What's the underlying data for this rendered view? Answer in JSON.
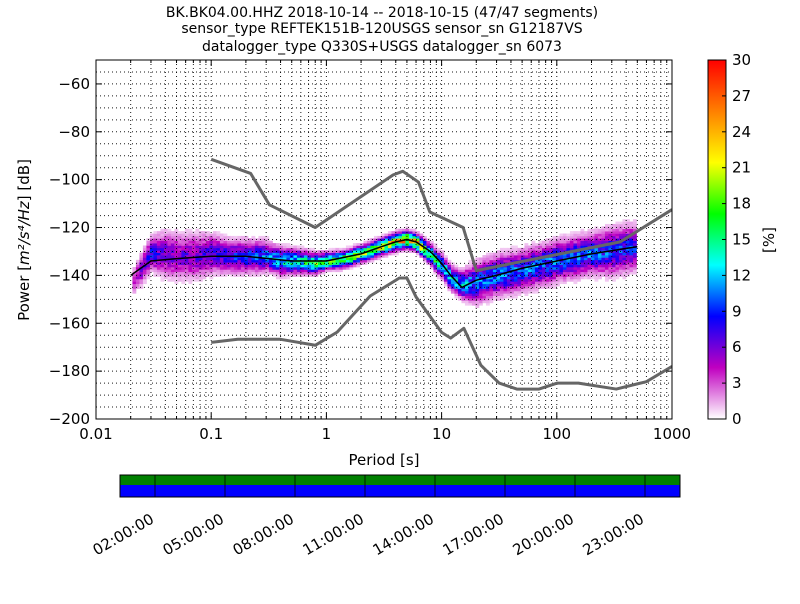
{
  "title_lines": [
    "BK.BK04.00.HHZ   2018-10-14 -- 2018-10-15  (47/47 segments)",
    "sensor_type REFTEK151B-120USGS sensor_sn G12187VS",
    "datalogger_type Q330S+USGS datalogger_sn 6073"
  ],
  "chart_data": {
    "type": "heatmap",
    "title": "BK.BK04.00.HHZ   2018-10-14 -- 2018-10-15  (47/47 segments)",
    "xlabel": "Period [s]",
    "ylabel_prefix": "Power [",
    "ylabel_unit": "m²/s⁴/Hz",
    "ylabel_suffix": "] [dB]",
    "xscale": "log",
    "xlim": [
      0.01,
      1000
    ],
    "ylim": [
      -200,
      -50
    ],
    "x_ticks": [
      {
        "value": 0.01,
        "label": "0.01"
      },
      {
        "value": 0.1,
        "label": "0.1"
      },
      {
        "value": 1,
        "label": "1"
      },
      {
        "value": 10,
        "label": "10"
      },
      {
        "value": 100,
        "label": "100"
      },
      {
        "value": 1000,
        "label": "1000"
      }
    ],
    "y_ticks": [
      {
        "value": -200,
        "label": "−200"
      },
      {
        "value": -180,
        "label": "−180"
      },
      {
        "value": -160,
        "label": "−160"
      },
      {
        "value": -140,
        "label": "−140"
      },
      {
        "value": -120,
        "label": "−120"
      },
      {
        "value": -100,
        "label": "−100"
      },
      {
        "value": -80,
        "label": "−80"
      },
      {
        "value": -60,
        "label": "−60"
      }
    ],
    "grid": true,
    "colorbar": {
      "label": "[%]",
      "min": 0,
      "max": 30,
      "ticks": [
        {
          "value": 0,
          "label": "0"
        },
        {
          "value": 3,
          "label": "3"
        },
        {
          "value": 6,
          "label": "6"
        },
        {
          "value": 9,
          "label": "9"
        },
        {
          "value": 12,
          "label": "12"
        },
        {
          "value": 15,
          "label": "15"
        },
        {
          "value": 18,
          "label": "18"
        },
        {
          "value": 21,
          "label": "21"
        },
        {
          "value": 24,
          "label": "24"
        },
        {
          "value": 27,
          "label": "27"
        },
        {
          "value": 30,
          "label": "30"
        }
      ],
      "colors": [
        "#ffffff",
        "#c000c0",
        "#0000ff",
        "#00ffff",
        "#00ff00",
        "#ffff00",
        "#ff8000",
        "#ff0000"
      ]
    },
    "psd_distribution": [
      [
        0.02,
        -144,
        8,
        3
      ],
      [
        0.025,
        -137,
        10,
        6
      ],
      [
        0.03,
        -131,
        10,
        8
      ],
      [
        0.04,
        -131,
        14,
        6
      ],
      [
        0.05,
        -132,
        14,
        6
      ],
      [
        0.07,
        -132,
        14,
        6
      ],
      [
        0.1,
        -131,
        12,
        7
      ],
      [
        0.15,
        -132,
        10,
        8
      ],
      [
        0.2,
        -132,
        10,
        9
      ],
      [
        0.3,
        -132,
        9,
        10
      ],
      [
        0.4,
        -134,
        8,
        12
      ],
      [
        0.6,
        -134,
        7,
        14
      ],
      [
        0.8,
        -135,
        6,
        16
      ],
      [
        1.0,
        -134,
        5,
        18
      ],
      [
        1.5,
        -133,
        5,
        18
      ],
      [
        2.0,
        -131,
        5,
        18
      ],
      [
        3.0,
        -128,
        5,
        20
      ],
      [
        4.0,
        -126,
        5,
        22
      ],
      [
        5.0,
        -125,
        5,
        24
      ],
      [
        6.0,
        -126,
        5,
        22
      ],
      [
        8.0,
        -131,
        6,
        16
      ],
      [
        10.0,
        -136,
        7,
        14
      ],
      [
        12.0,
        -141,
        7,
        13
      ],
      [
        15.0,
        -144,
        8,
        12
      ],
      [
        20.0,
        -143,
        12,
        10
      ],
      [
        30.0,
        -140,
        12,
        10
      ],
      [
        50.0,
        -138,
        12,
        10
      ],
      [
        70.0,
        -136,
        12,
        10
      ],
      [
        100.0,
        -134,
        12,
        10
      ],
      [
        150.0,
        -132,
        12,
        10
      ],
      [
        200.0,
        -131,
        12,
        10
      ],
      [
        300.0,
        -130,
        14,
        9
      ],
      [
        500.0,
        -128,
        14,
        8
      ]
    ],
    "mean_curve": {
      "x": [
        0.02,
        0.03,
        0.05,
        0.1,
        0.2,
        0.5,
        1,
        2,
        3,
        4,
        5,
        6,
        8,
        10,
        12,
        15,
        20,
        30,
        50,
        100,
        200,
        500
      ],
      "y": [
        -140,
        -134,
        -133,
        -132,
        -132,
        -134,
        -134,
        -131,
        -128,
        -126,
        -125,
        -126,
        -130,
        -135,
        -140,
        -145,
        -142,
        -140,
        -137,
        -134,
        -131,
        -128
      ]
    },
    "nhnm": {
      "x": [
        0.1,
        0.22,
        0.32,
        0.8,
        3.8,
        4.6,
        6.3,
        7.9,
        15.4,
        20,
        354.8,
        1000
      ],
      "y": [
        -91.5,
        -97.4,
        -110.5,
        -120,
        -98,
        -96.5,
        -101,
        -113.5,
        -120,
        -138,
        -126,
        -112.5
      ]
    },
    "nlnm": {
      "x": [
        0.1,
        0.17,
        0.4,
        0.8,
        1.24,
        2.4,
        4.3,
        5,
        6,
        10,
        12,
        15.6,
        21.9,
        31.6,
        45,
        70,
        101,
        154,
        328,
        600,
        1000
      ],
      "y": [
        -168,
        -166.7,
        -166.7,
        -169.2,
        -163.7,
        -148.6,
        -141.1,
        -141.1,
        -149,
        -163.8,
        -166.2,
        -162.1,
        -177.5,
        -185,
        -187.5,
        -187.5,
        -185,
        -185,
        -187.5,
        -184.4,
        -178
      ]
    }
  },
  "timeline": {
    "bar_colors": {
      "top": "#008000",
      "bottom": "#0000ff"
    },
    "ticks": [
      "02:00:00",
      "05:00:00",
      "08:00:00",
      "11:00:00",
      "14:00:00",
      "17:00:00",
      "20:00:00",
      "23:00:00"
    ]
  }
}
